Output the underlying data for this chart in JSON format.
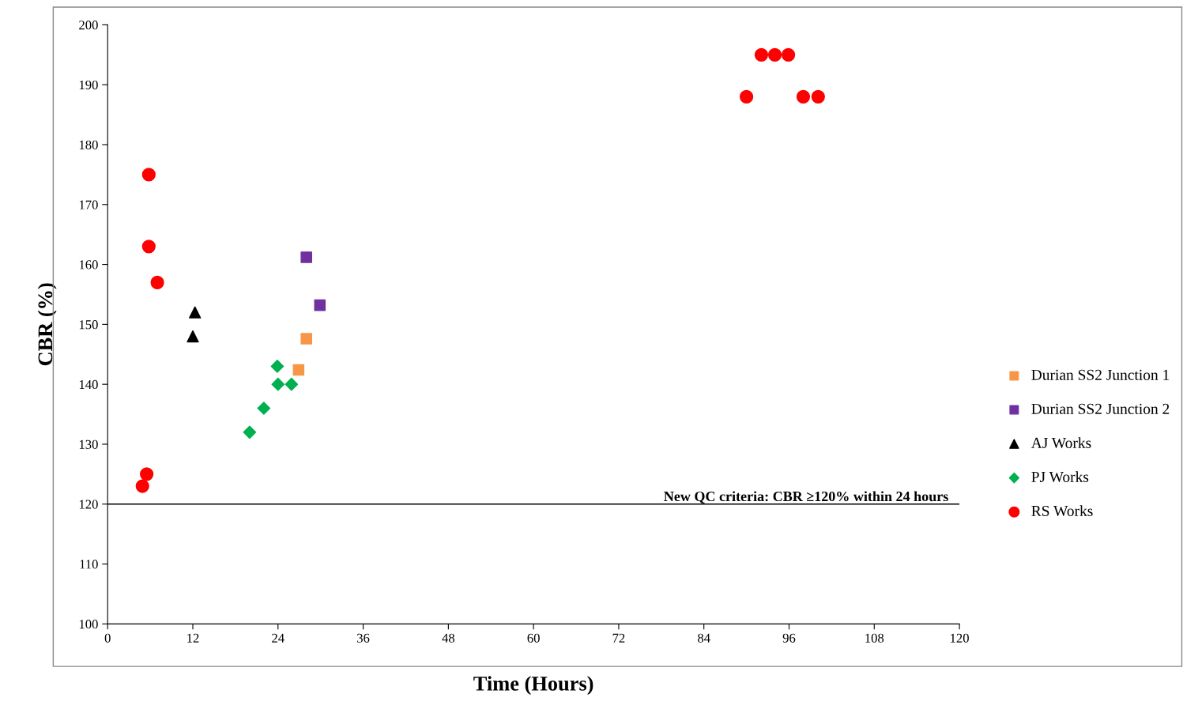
{
  "chart_data": {
    "type": "scatter",
    "xlabel": "Time (Hours)",
    "ylabel": "CBR (%)",
    "xlim": [
      0,
      120
    ],
    "xticks": [
      0,
      12,
      24,
      36,
      48,
      60,
      72,
      84,
      96,
      108,
      120
    ],
    "ylim": [
      100,
      200
    ],
    "yticks": [
      100,
      110,
      120,
      130,
      140,
      150,
      160,
      170,
      180,
      190,
      200
    ],
    "grid": false,
    "legend": "right",
    "series": [
      {
        "name": "Durian SS2 Junction 1",
        "color": "#f79646",
        "marker": "square",
        "x": [
          26.9,
          28
        ],
        "values": [
          142.4,
          147.6
        ]
      },
      {
        "name": "Durian SS2 Junction 2",
        "color": "#7030a0",
        "marker": "square",
        "x": [
          28,
          29.9
        ],
        "values": [
          161.2,
          153.2
        ]
      },
      {
        "name": "AJ Works",
        "color": "#000000",
        "marker": "triangle",
        "x": [
          12.3,
          12
        ],
        "values": [
          152,
          148
        ]
      },
      {
        "name": "PJ Works",
        "color": "#00b050",
        "marker": "diamond",
        "x": [
          20,
          22,
          23.9,
          24,
          25.9
        ],
        "values": [
          132,
          136,
          143,
          140,
          140
        ]
      },
      {
        "name": "RS Works",
        "color": "#ff0000",
        "marker": "circle",
        "x": [
          5.8,
          5.8,
          7,
          5.5,
          4.9,
          90,
          92.1,
          94,
          95.9,
          98,
          100.1
        ],
        "values": [
          175,
          163,
          157,
          125,
          123,
          188,
          195,
          195,
          195,
          188,
          188
        ]
      }
    ],
    "ref_lines": [
      {
        "axis": "y",
        "value": 120,
        "label": "New QC criteria: CBR ≥120% within 24 hours",
        "color": "#000000"
      }
    ]
  }
}
